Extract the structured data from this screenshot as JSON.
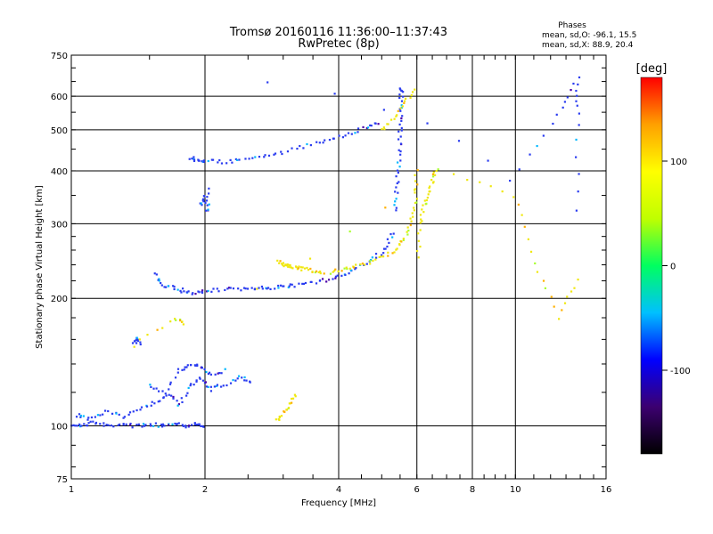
{
  "chart_data": {
    "type": "scatter",
    "title": "Tromsø 20160116 11:36:00–11:37:43",
    "subtitle": "RwPretec (8p)",
    "xlabel": "Frequency [MHz]",
    "ylabel": "Stationary phase Virtual Height [km]",
    "x_scale": "log",
    "y_scale": "log",
    "xlim": [
      1,
      16
    ],
    "ylim": [
      75,
      750
    ],
    "x_ticks": [
      "1",
      "2",
      "4",
      "6",
      "8",
      "10",
      "16"
    ],
    "y_ticks": [
      "750",
      "600",
      "500",
      "400",
      "300",
      "200",
      "100",
      "75"
    ],
    "grid": true,
    "phases_box": {
      "title": "Phases",
      "line_o": "mean, sd,O: -96.1, 15.5",
      "line_x": "mean, sd,X:  88.9, 20.4"
    },
    "colorbar": {
      "unit": "[deg]",
      "range": [
        -180,
        180
      ],
      "ticks": [
        "100",
        "0",
        "-100"
      ],
      "colors": [
        "#000000",
        "#3c0070",
        "#0000ff",
        "#00c0ff",
        "#00ff60",
        "#c0ff00",
        "#ffff00",
        "#ffa000",
        "#ff0000"
      ]
    },
    "series": [
      {
        "name": "O",
        "color": "#2a3cf0",
        "segments": [
          {
            "x": [
              1.01,
              1.05,
              1.12,
              1.2,
              1.3,
              1.4,
              1.5,
              1.6,
              1.7,
              1.8,
              1.9,
              2.0
            ],
            "y": [
              101,
              100,
              102,
              100,
              101,
              100,
              101,
              100,
              102,
              100,
              101,
              100
            ]
          },
          {
            "x": [
              1.02,
              1.1,
              1.2,
              1.3,
              1.42,
              1.55,
              1.65,
              1.75,
              1.85,
              1.95,
              2.05,
              2.2,
              2.4,
              2.55
            ],
            "y": [
              106,
              104,
              108,
              105,
              110,
              114,
              118,
              112,
              124,
              130,
              122,
              125,
              130,
              128
            ]
          },
          {
            "x": [
              1.5,
              1.62,
              1.75,
              1.85,
              1.95,
              2.05,
              2.2
            ],
            "y": [
              125,
              120,
              135,
              140,
              138,
              132,
              135
            ]
          },
          {
            "x": [
              1.38,
              1.4,
              1.42
            ],
            "y": [
              158,
              162,
              156
            ]
          },
          {
            "x": [
              1.55,
              1.6,
              1.7,
              1.8,
              1.9,
              2.0,
              2.2,
              2.4,
              2.6,
              2.8,
              3.0,
              3.2,
              3.5,
              3.8,
              4.1,
              4.4,
              4.8,
              5.1,
              5.3
            ],
            "y": [
              228,
              215,
              212,
              208,
              206,
              208,
              210,
              210,
              212,
              212,
              213,
              215,
              217,
              222,
              228,
              236,
              248,
              262,
              285
            ]
          },
          {
            "x": [
              5.35,
              5.4,
              5.45,
              5.48,
              5.5,
              5.52,
              5.53,
              5.54
            ],
            "y": [
              320,
              360,
              400,
              450,
              500,
              550,
              600,
              630
            ]
          },
          {
            "x": [
              1.85,
              1.92,
              2.0,
              2.2,
              2.4,
              2.7,
              3.0,
              3.4,
              3.8,
              4.2,
              4.6,
              4.9
            ],
            "y": [
              430,
              425,
              422,
              420,
              425,
              432,
              442,
              460,
              475,
              490,
              505,
              520
            ]
          },
          {
            "x": [
              1.95,
              1.98,
              2.02,
              2.05
            ],
            "y": [
              330,
              350,
              320,
              360
            ]
          },
          {
            "x": [
              2.75,
              9.8,
              12.5,
              13.8,
              13.8,
              13.8
            ],
            "y": [
              650,
              380,
              540,
              660,
              550,
              320
            ]
          }
        ]
      },
      {
        "name": "X",
        "color": "#f0e810",
        "segments": [
          {
            "x": [
              3.8,
              4.1,
              4.4,
              4.8,
              5.2,
              5.5,
              5.7,
              5.85,
              5.95,
              6.0
            ],
            "y": [
              230,
              234,
              238,
              245,
              255,
              268,
              285,
              310,
              345,
              400
            ]
          },
          {
            "x": [
              6.05,
              6.1,
              6.2,
              6.35,
              6.5,
              6.6
            ],
            "y": [
              250,
              300,
              330,
              350,
              380,
              400
            ]
          },
          {
            "x": [
              2.9,
              3.0,
              3.1,
              3.2,
              3.3,
              3.5,
              3.7
            ],
            "y": [
              245,
              240,
              238,
              236,
              235,
              232,
              230
            ]
          },
          {
            "x": [
              2.9,
              3.0,
              3.1,
              3.2
            ],
            "y": [
              103,
              107,
              112,
              118
            ]
          },
          {
            "x": [
              5.0,
              5.3,
              5.6,
              5.9
            ],
            "y": [
              500,
              530,
              580,
              620
            ]
          },
          {
            "x": [
              1.38,
              1.72,
              1.8,
              6.7,
              9.9,
              11.0,
              12.5,
              13.8
            ],
            "y": [
              155,
              180,
              175,
              400,
              350,
              240,
              180,
              220
            ]
          }
        ]
      }
    ]
  }
}
